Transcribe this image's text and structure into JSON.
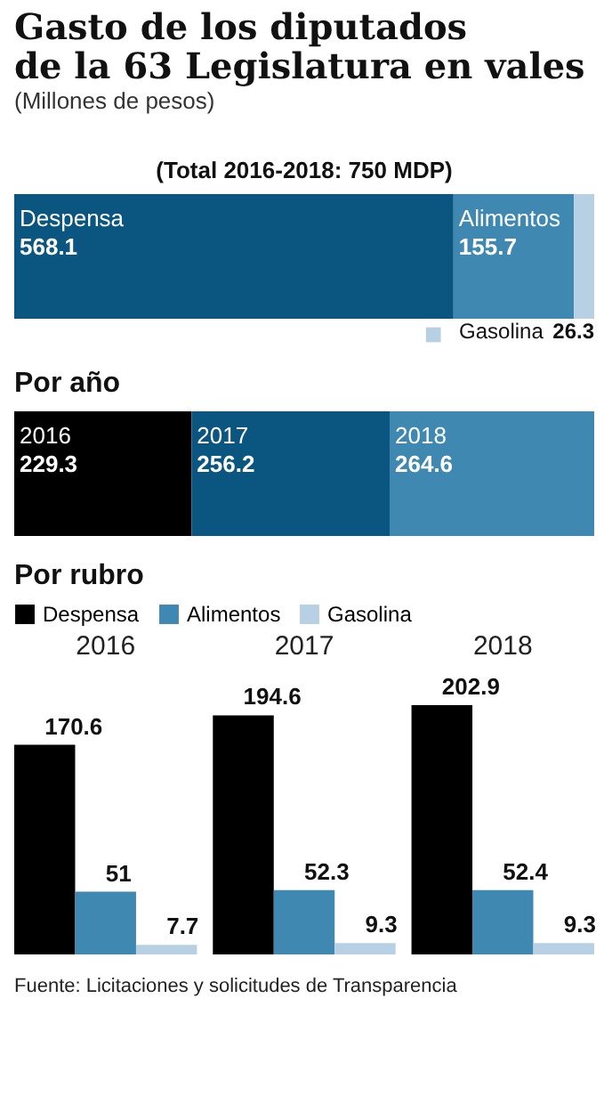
{
  "chart_data": [
    {
      "type": "bar",
      "title": "Gasto de los diputados de la 63 Legislatura en vales",
      "subtitle": "(Millones de pesos)",
      "annotations": [
        "(Total 2016-2018: 750 MDP)"
      ],
      "categories": [
        null
      ],
      "orientation": "horizontal",
      "stacked": true,
      "data_labels": true,
      "series": [
        {
          "name": "Despensa",
          "color": "#0b5680",
          "values": [
            568.1
          ]
        },
        {
          "name": "Alimentos",
          "color": "#3f88b2",
          "values": [
            155.7
          ]
        },
        {
          "name": "Gasolina",
          "color": "#b7d0e4",
          "values": [
            26.3
          ]
        }
      ]
    },
    {
      "type": "bar",
      "title": "Por año",
      "categories": [
        null
      ],
      "orientation": "horizontal",
      "stacked": true,
      "data_labels": true,
      "series": [
        {
          "name": "2016",
          "color": "#000000",
          "values": [
            229.3
          ]
        },
        {
          "name": "2017",
          "color": "#0b5680",
          "values": [
            256.2
          ]
        },
        {
          "name": "2018",
          "color": "#3f88b2",
          "values": [
            264.6
          ]
        }
      ]
    },
    {
      "type": "bar",
      "title": "Por rubro",
      "categories": [
        "2016",
        "2017",
        "2018"
      ],
      "legend": "top left",
      "data_labels": true,
      "annotations": [
        "Fuente: Licitaciones y solicitudes de Transparencia"
      ],
      "series": [
        {
          "name": "Despensa",
          "color": "#000000",
          "values": [
            170.6,
            194.6,
            202.9
          ]
        },
        {
          "name": "Alimentos",
          "color": "#3f88b2",
          "values": [
            51,
            52.3,
            52.4
          ]
        },
        {
          "name": "Gasolina",
          "color": "#b7d0e4",
          "values": [
            7.7,
            9.3,
            9.3
          ]
        }
      ]
    }
  ]
}
